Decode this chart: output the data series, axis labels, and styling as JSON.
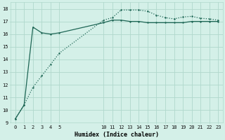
{
  "xlabel": "Humidex (Indice chaleur)",
  "bg_color": "#d4f0e8",
  "grid_color": "#b0d8cc",
  "line_color": "#1e6655",
  "xlim": [
    -0.5,
    23.5
  ],
  "ylim": [
    9,
    18.5
  ],
  "yticks": [
    9,
    10,
    11,
    12,
    13,
    14,
    15,
    16,
    17,
    18
  ],
  "xticks": [
    0,
    1,
    2,
    3,
    4,
    5,
    10,
    11,
    12,
    13,
    14,
    15,
    16,
    17,
    18,
    19,
    20,
    21,
    22,
    23
  ],
  "line1_x": [
    0,
    1,
    2,
    3,
    4,
    5,
    10,
    11,
    12,
    13,
    14,
    15,
    16,
    17,
    18,
    19,
    20,
    21,
    22,
    23
  ],
  "line1_y": [
    9.3,
    10.4,
    16.55,
    16.1,
    16.0,
    16.1,
    16.9,
    17.1,
    17.1,
    17.0,
    17.0,
    16.9,
    16.9,
    16.9,
    16.9,
    16.9,
    17.0,
    17.0,
    17.0,
    17.0
  ],
  "line2_x": [
    0,
    1,
    2,
    3,
    4,
    5,
    10,
    11,
    12,
    13,
    14,
    15,
    16,
    17,
    18,
    19,
    20,
    21,
    22,
    23
  ],
  "line2_y": [
    9.3,
    10.4,
    11.8,
    12.7,
    13.6,
    14.5,
    17.1,
    17.3,
    17.9,
    17.9,
    17.9,
    17.8,
    17.5,
    17.3,
    17.2,
    17.35,
    17.4,
    17.25,
    17.2,
    17.1
  ],
  "marker_size": 2.0,
  "line_width": 0.9,
  "tick_fontsize": 5.0,
  "xlabel_fontsize": 6.0
}
